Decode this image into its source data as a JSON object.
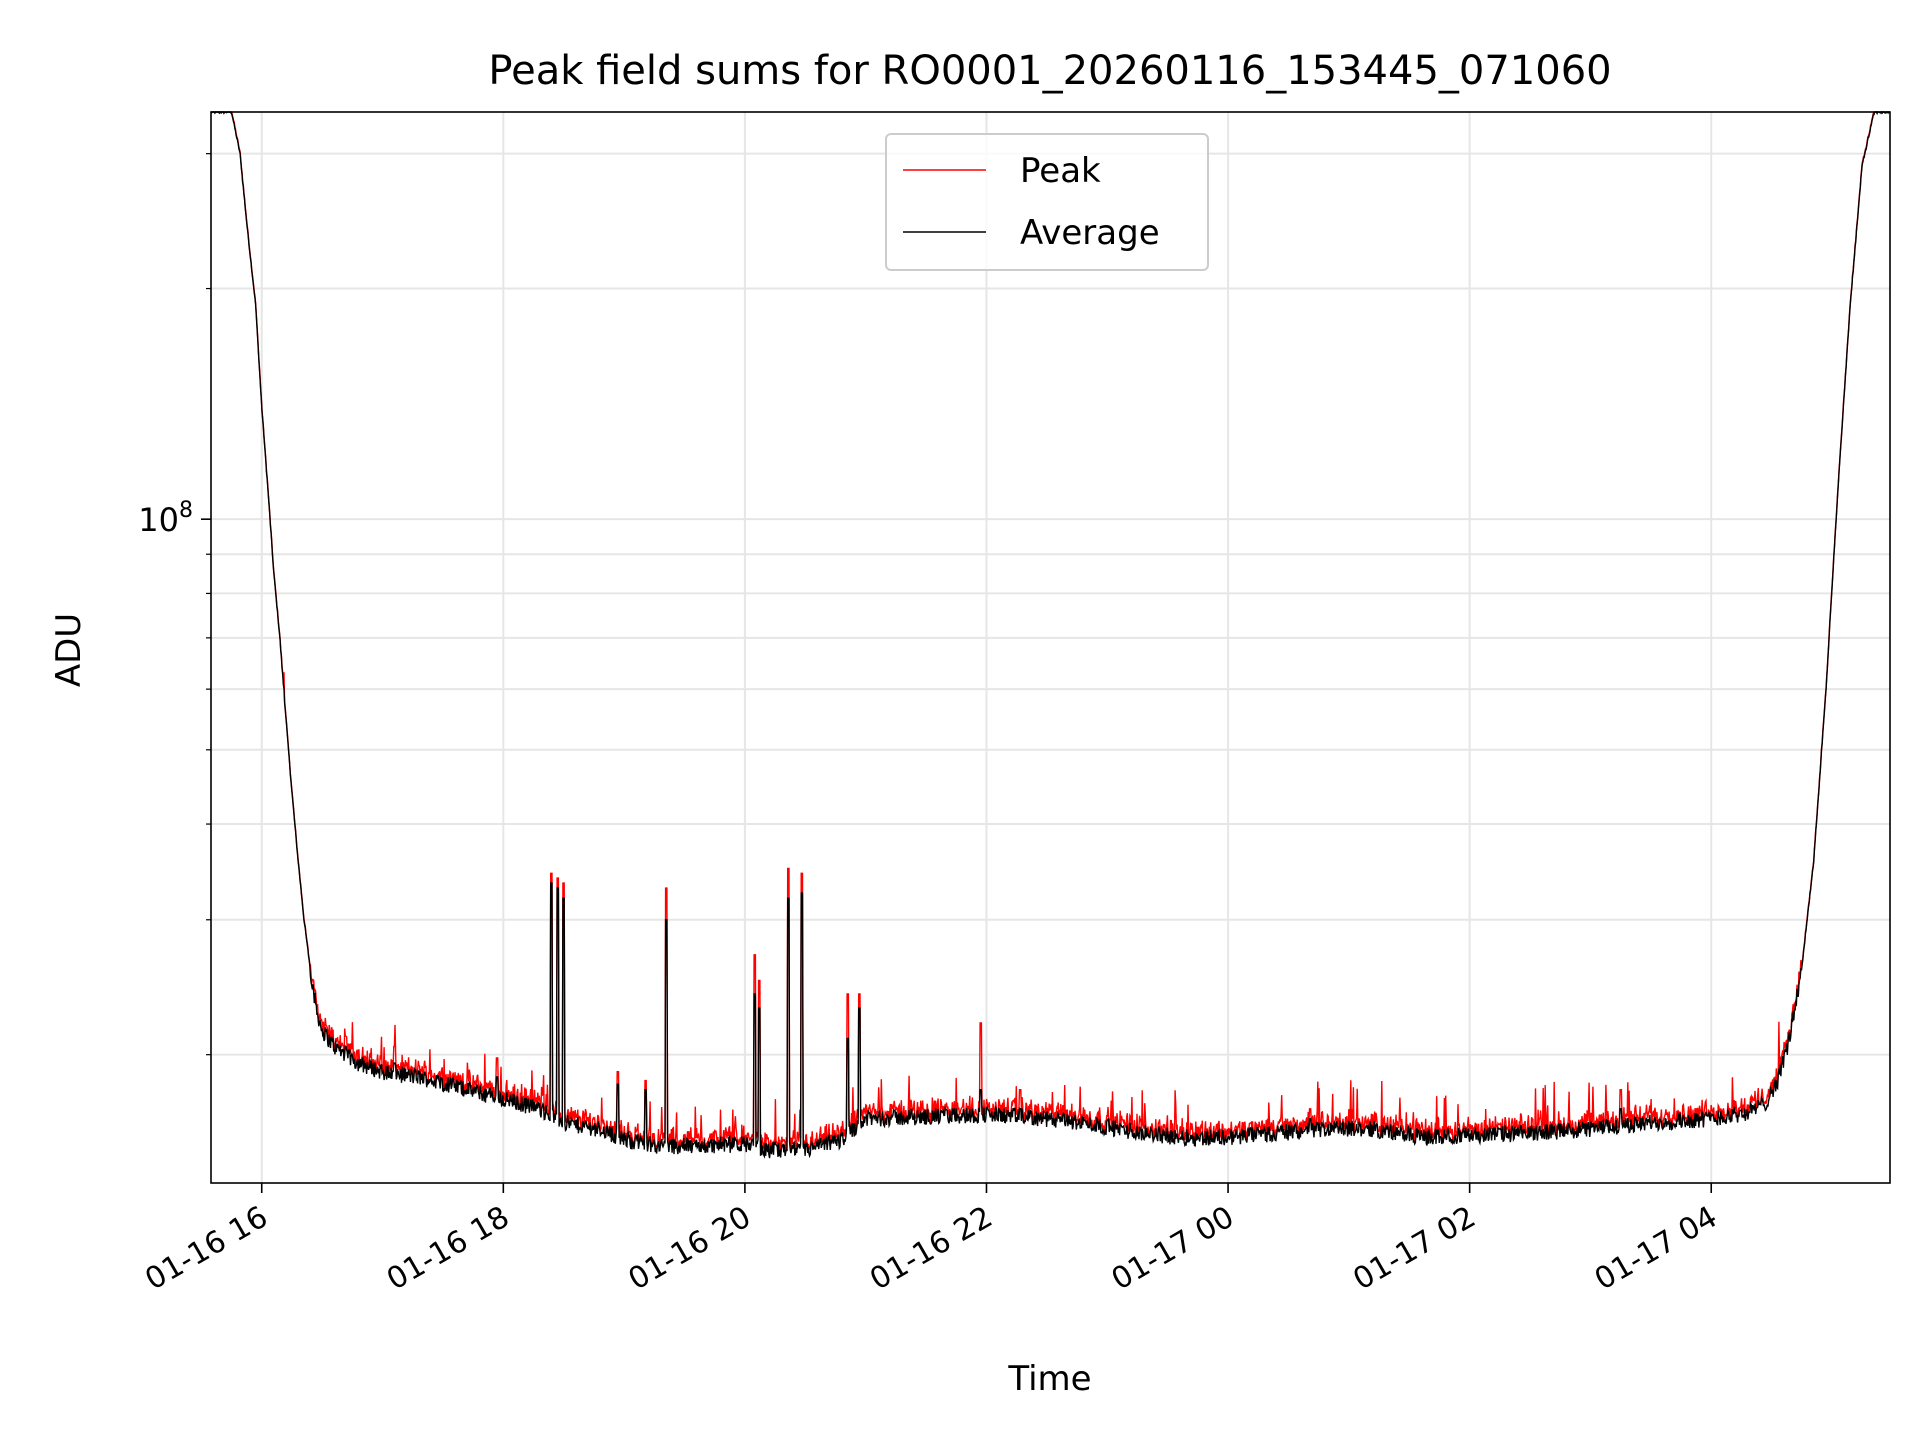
{
  "chart_data": {
    "type": "line",
    "title": "Peak field sums for RO0001_20260116_153445_071060",
    "xlabel": "Time",
    "ylabel": "ADU",
    "y_scale": "log",
    "ylim": [
      13600000,
      340000000
    ],
    "xlim": [
      -0.42,
      13.48
    ],
    "x_unit": "hours since 01-16 16:00",
    "grid": true,
    "legend_position": "upper-center",
    "y_major_ticks": [
      {
        "value": 100000000,
        "base": "10",
        "exp": "8"
      }
    ],
    "y_minor_ticks": [
      20000000,
      30000000,
      40000000,
      50000000,
      60000000,
      70000000,
      80000000,
      90000000,
      200000000,
      300000000
    ],
    "x_ticks": [
      {
        "value": 0,
        "label": "01-16 16"
      },
      {
        "value": 2,
        "label": "01-16 18"
      },
      {
        "value": 4,
        "label": "01-16 20"
      },
      {
        "value": 6,
        "label": "01-16 22"
      },
      {
        "value": 8,
        "label": "01-17 00"
      },
      {
        "value": 10,
        "label": "01-17 02"
      },
      {
        "value": 12,
        "label": "01-17 04"
      }
    ],
    "series": [
      {
        "name": "Peak",
        "color": "#ff0000"
      },
      {
        "name": "Average",
        "color": "#000000"
      }
    ],
    "baseline_points": [
      [
        -0.42,
        340000000
      ],
      [
        -0.25,
        340000000
      ],
      [
        -0.18,
        300000000
      ],
      [
        -0.12,
        240000000
      ],
      [
        -0.05,
        190000000
      ],
      [
        0.0,
        140000000
      ],
      [
        0.05,
        110000000
      ],
      [
        0.1,
        85000000
      ],
      [
        0.15,
        70000000
      ],
      [
        0.2,
        55000000
      ],
      [
        0.25,
        44000000
      ],
      [
        0.3,
        36000000
      ],
      [
        0.35,
        30000000
      ],
      [
        0.4,
        26000000
      ],
      [
        0.45,
        23000000
      ],
      [
        0.5,
        21500000
      ],
      [
        0.6,
        20500000
      ],
      [
        0.8,
        19500000
      ],
      [
        1.0,
        19000000
      ],
      [
        1.3,
        18700000
      ],
      [
        1.6,
        18200000
      ],
      [
        2.0,
        17500000
      ],
      [
        2.3,
        17000000
      ],
      [
        2.5,
        16300000
      ],
      [
        2.8,
        16000000
      ],
      [
        3.0,
        15500000
      ],
      [
        3.3,
        15200000
      ],
      [
        3.6,
        15200000
      ],
      [
        4.0,
        15300000
      ],
      [
        4.2,
        15000000
      ],
      [
        4.5,
        15000000
      ],
      [
        4.8,
        15500000
      ],
      [
        5.0,
        16500000
      ],
      [
        5.5,
        16600000
      ],
      [
        6.0,
        16700000
      ],
      [
        6.3,
        16600000
      ],
      [
        6.8,
        16300000
      ],
      [
        7.2,
        15900000
      ],
      [
        7.6,
        15600000
      ],
      [
        8.0,
        15600000
      ],
      [
        8.4,
        15800000
      ],
      [
        8.8,
        16000000
      ],
      [
        9.2,
        16000000
      ],
      [
        9.6,
        15600000
      ],
      [
        10.0,
        15700000
      ],
      [
        10.5,
        15800000
      ],
      [
        11.0,
        16000000
      ],
      [
        11.5,
        16300000
      ],
      [
        12.0,
        16500000
      ],
      [
        12.3,
        16800000
      ],
      [
        12.45,
        17300000
      ],
      [
        12.55,
        18500000
      ],
      [
        12.65,
        21000000
      ],
      [
        12.75,
        26000000
      ],
      [
        12.85,
        36000000
      ],
      [
        12.95,
        60000000
      ],
      [
        13.05,
        110000000
      ],
      [
        13.15,
        190000000
      ],
      [
        13.25,
        290000000
      ],
      [
        13.35,
        340000000
      ],
      [
        13.48,
        340000000
      ]
    ],
    "spikes": [
      {
        "x": 0.18,
        "peak": 63000000,
        "average": 60000000
      },
      {
        "x": 1.1,
        "peak": 20500000,
        "average": 19500000
      },
      {
        "x": 1.95,
        "peak": 19800000,
        "average": 18700000
      },
      {
        "x": 2.4,
        "peak": 34500000,
        "average": 33500000
      },
      {
        "x": 2.45,
        "peak": 34000000,
        "average": 33000000
      },
      {
        "x": 2.5,
        "peak": 33500000,
        "average": 32000000
      },
      {
        "x": 2.95,
        "peak": 19000000,
        "average": 18300000
      },
      {
        "x": 3.18,
        "peak": 18500000,
        "average": 18000000
      },
      {
        "x": 3.35,
        "peak": 33000000,
        "average": 30000000
      },
      {
        "x": 4.08,
        "peak": 27000000,
        "average": 24000000
      },
      {
        "x": 4.12,
        "peak": 25000000,
        "average": 23000000
      },
      {
        "x": 4.36,
        "peak": 35000000,
        "average": 32000000
      },
      {
        "x": 4.47,
        "peak": 34500000,
        "average": 32500000
      },
      {
        "x": 4.85,
        "peak": 24000000,
        "average": 21000000
      },
      {
        "x": 4.95,
        "peak": 24000000,
        "average": 23000000
      },
      {
        "x": 5.95,
        "peak": 22000000,
        "average": 18000000
      },
      {
        "x": 6.28,
        "peak": 18000000,
        "average": 17000000
      },
      {
        "x": 8.68,
        "peak": 17000000,
        "average": 16500000
      },
      {
        "x": 11.25,
        "peak": 18000000,
        "average": 17000000
      },
      {
        "x": 12.8,
        "peak": 26500000,
        "average": 25000000
      }
    ]
  }
}
